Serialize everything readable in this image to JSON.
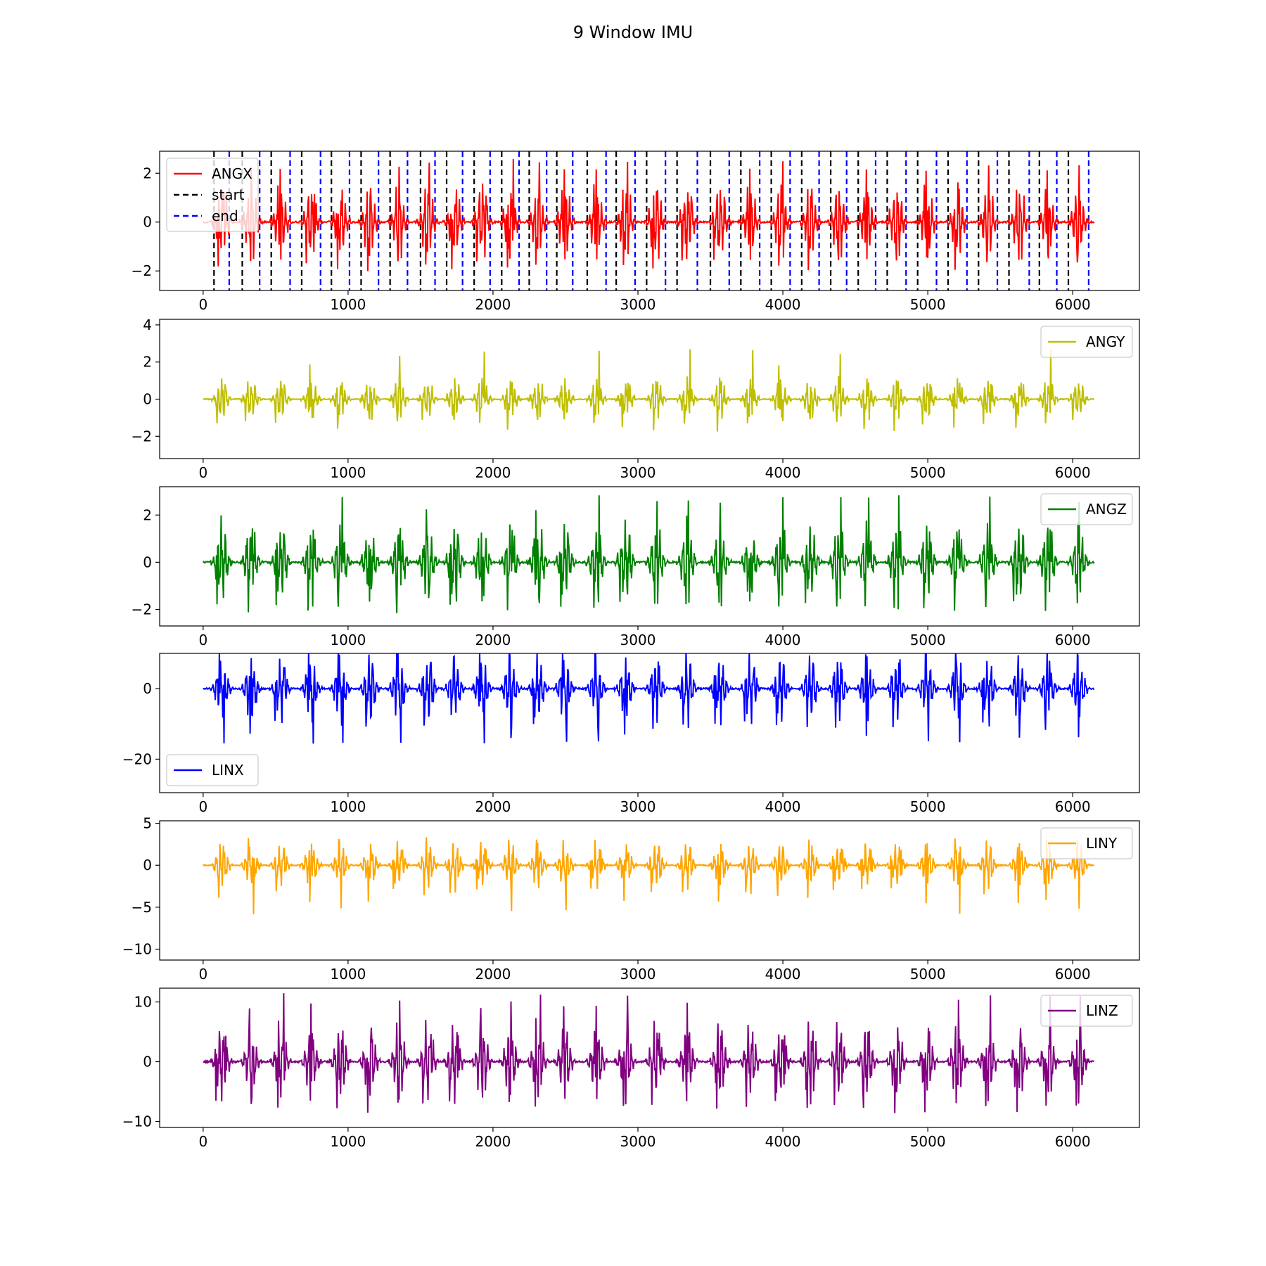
{
  "figure": {
    "title": "9 Window IMU"
  },
  "chart_data": [
    {
      "type": "line",
      "name": "ANGX",
      "color": "#ff0000",
      "xlim": [
        -300,
        6460
      ],
      "ylim": [
        -2.8,
        2.9
      ],
      "xticks": [
        0,
        1000,
        2000,
        3000,
        4000,
        5000,
        6000
      ],
      "yticks": [
        -2,
        0,
        2
      ],
      "legend_position": "top-left",
      "legend": [
        {
          "label": "ANGX",
          "color": "#ff0000",
          "style": "solid"
        },
        {
          "label": "start",
          "color": "#000000",
          "style": "dashed"
        },
        {
          "label": "end",
          "color": "#0000ff",
          "style": "dashed"
        }
      ],
      "amplitude": [
        1.7,
        2.6
      ],
      "start_markers": [
        75,
        270,
        470,
        680,
        885,
        1090,
        1290,
        1500,
        1680,
        1870,
        2060,
        2250,
        2440,
        2650,
        2850,
        3060,
        3270,
        3500,
        3710,
        3920,
        4130,
        4330,
        4520,
        4720,
        4930,
        5140,
        5350,
        5560,
        5770,
        5970
      ],
      "end_markers": [
        180,
        390,
        600,
        810,
        1010,
        1210,
        1410,
        1600,
        1790,
        1980,
        2180,
        2370,
        2550,
        2780,
        2980,
        3190,
        3410,
        3630,
        3840,
        4050,
        4250,
        4440,
        4640,
        4850,
        5060,
        5270,
        5480,
        5700,
        5890,
        6110
      ]
    },
    {
      "type": "line",
      "name": "ANGY",
      "color": "#bfbf00",
      "xlim": [
        -300,
        6460
      ],
      "ylim": [
        -3.2,
        4.3
      ],
      "xticks": [
        0,
        1000,
        2000,
        3000,
        4000,
        5000,
        6000
      ],
      "yticks": [
        -2,
        0,
        2,
        4
      ],
      "legend_position": "top-right",
      "legend": [
        {
          "label": "ANGY",
          "color": "#bfbf00",
          "style": "solid"
        }
      ],
      "amplitude": [
        1.2,
        2.7
      ]
    },
    {
      "type": "line",
      "name": "ANGZ",
      "color": "#008000",
      "xlim": [
        -300,
        6460
      ],
      "ylim": [
        -2.7,
        3.2
      ],
      "xticks": [
        0,
        1000,
        2000,
        3000,
        4000,
        5000,
        6000
      ],
      "yticks": [
        -2,
        0,
        2
      ],
      "legend_position": "top-right",
      "legend": [
        {
          "label": "ANGZ",
          "color": "#008000",
          "style": "solid"
        }
      ],
      "amplitude": [
        1.8,
        2.9
      ]
    },
    {
      "type": "line",
      "name": "LINX",
      "color": "#0000ff",
      "xlim": [
        -300,
        6460
      ],
      "ylim": [
        -29.5,
        10
      ],
      "xticks": [
        0,
        1000,
        2000,
        3000,
        4000,
        5000,
        6000
      ],
      "yticks": [
        -20,
        0
      ],
      "legend_position": "bottom-left",
      "legend": [
        {
          "label": "LINX",
          "color": "#0000ff",
          "style": "solid"
        }
      ],
      "amplitude": [
        10,
        16
      ]
    },
    {
      "type": "line",
      "name": "LINY",
      "color": "#ffa500",
      "xlim": [
        -300,
        6460
      ],
      "ylim": [
        -11.3,
        5.3
      ],
      "xticks": [
        0,
        1000,
        2000,
        3000,
        4000,
        5000,
        6000
      ],
      "yticks": [
        -10,
        -5,
        0,
        5
      ],
      "legend_position": "top-right",
      "legend": [
        {
          "label": "LINY",
          "color": "#ffa500",
          "style": "solid"
        }
      ],
      "amplitude": [
        3,
        6
      ]
    },
    {
      "type": "line",
      "name": "LINZ",
      "color": "#800080",
      "xlim": [
        -300,
        6460
      ],
      "ylim": [
        -11,
        12.3
      ],
      "xticks": [
        0,
        1000,
        2000,
        3000,
        4000,
        5000,
        6000
      ],
      "yticks": [
        -10,
        0,
        10
      ],
      "legend_position": "top-right",
      "legend": [
        {
          "label": "LINZ",
          "color": "#800080",
          "style": "solid"
        }
      ],
      "amplitude": [
        7,
        11.5
      ]
    }
  ]
}
